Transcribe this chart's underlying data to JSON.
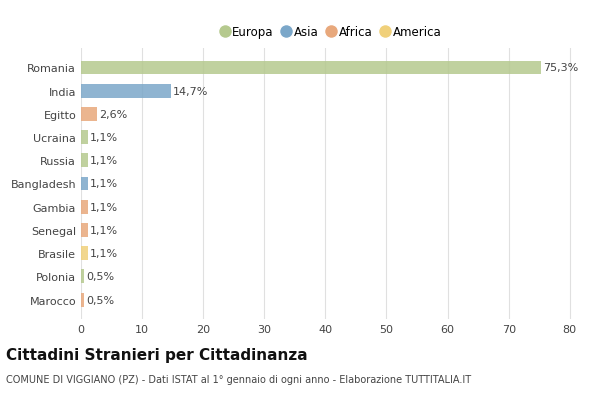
{
  "categories": [
    "Romania",
    "India",
    "Egitto",
    "Ucraina",
    "Russia",
    "Bangladesh",
    "Gambia",
    "Senegal",
    "Brasile",
    "Polonia",
    "Marocco"
  ],
  "values": [
    75.3,
    14.7,
    2.6,
    1.1,
    1.1,
    1.1,
    1.1,
    1.1,
    1.1,
    0.5,
    0.5
  ],
  "labels": [
    "75,3%",
    "14,7%",
    "2,6%",
    "1,1%",
    "1,1%",
    "1,1%",
    "1,1%",
    "1,1%",
    "1,1%",
    "0,5%",
    "0,5%"
  ],
  "continents": [
    "Europa",
    "Asia",
    "Africa",
    "Europa",
    "Europa",
    "Asia",
    "Africa",
    "Africa",
    "America",
    "Europa",
    "Africa"
  ],
  "colors": {
    "Europa": "#b5c98e",
    "Asia": "#7ba7c9",
    "Africa": "#e8a87c",
    "America": "#f0d07a"
  },
  "legend_labels": [
    "Europa",
    "Asia",
    "Africa",
    "America"
  ],
  "legend_colors": [
    "#b5c98e",
    "#7ba7c9",
    "#e8a87c",
    "#f0d07a"
  ],
  "xlim": [
    0,
    82
  ],
  "xticks": [
    0,
    10,
    20,
    30,
    40,
    50,
    60,
    70,
    80
  ],
  "title": "Cittadini Stranieri per Cittadinanza",
  "subtitle": "COMUNE DI VIGGIANO (PZ) - Dati ISTAT al 1° gennaio di ogni anno - Elaborazione TUTTITALIA.IT",
  "background_color": "#ffffff",
  "plot_bg_color": "#ffffff",
  "bar_height": 0.6,
  "grid_color": "#e0e0e0",
  "label_fontsize": 8,
  "title_fontsize": 11,
  "subtitle_fontsize": 7,
  "tick_fontsize": 8,
  "legend_fontsize": 8.5
}
